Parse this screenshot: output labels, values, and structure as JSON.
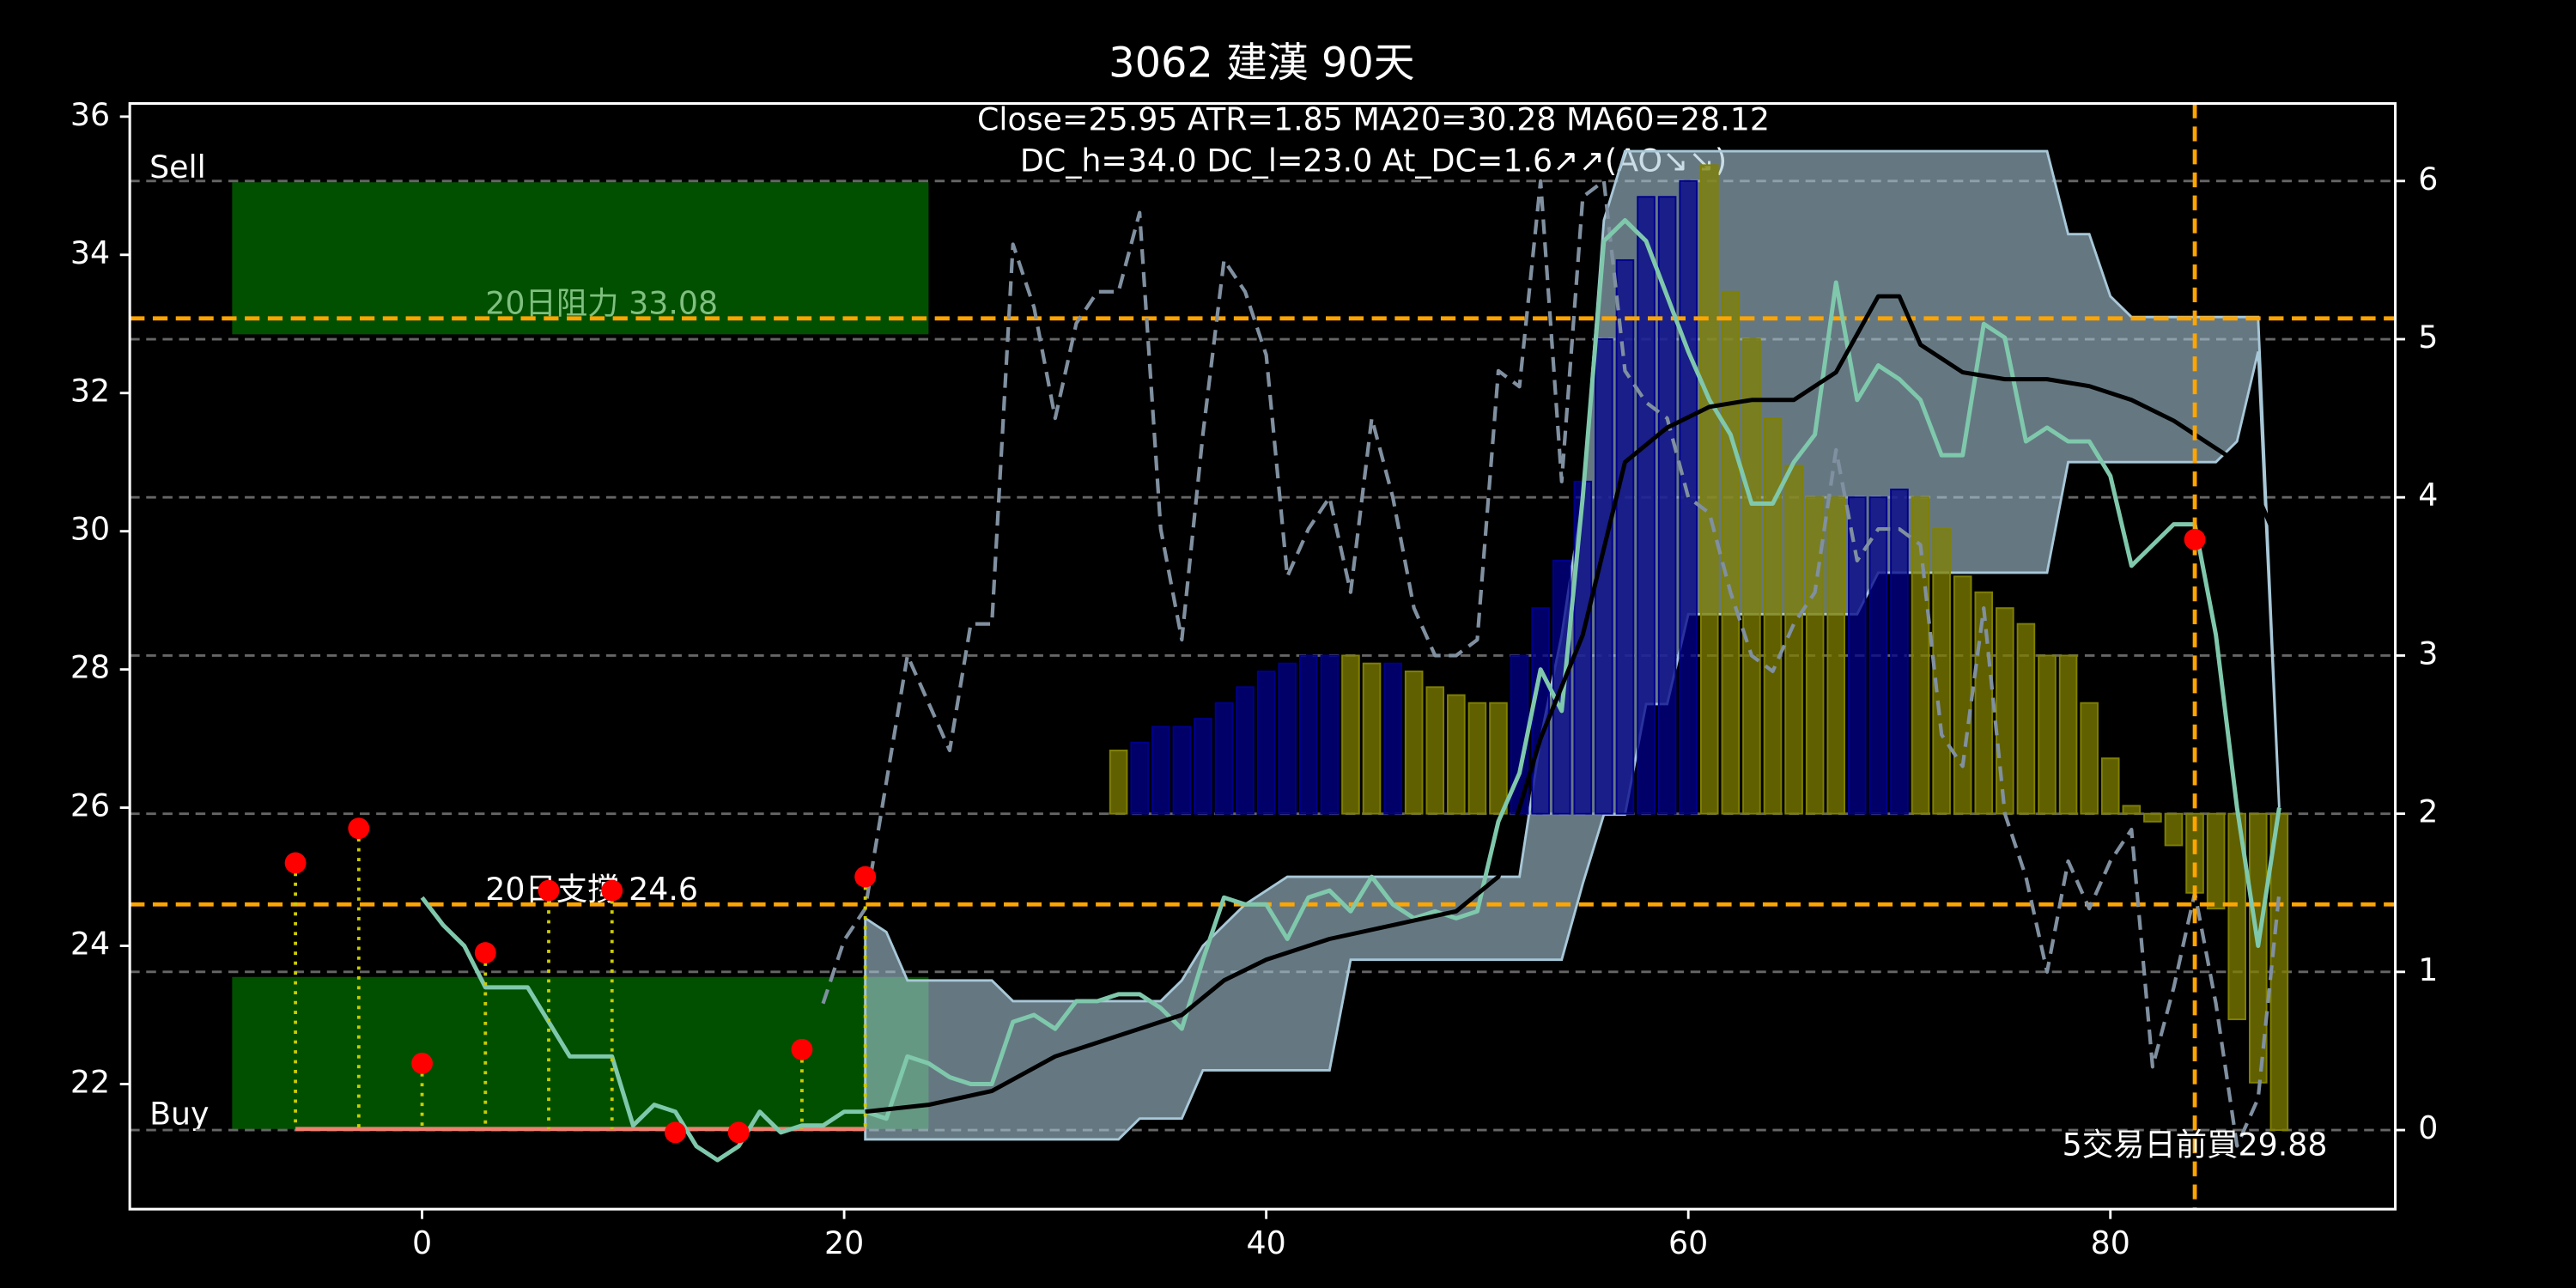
{
  "chart_data": {
    "type": "line",
    "title": "3062 建漢 90天",
    "subtitle": [
      "Close=25.95 ATR=1.85 MA20=30.28 MA60=28.12",
      "DC_h=34.0 DC_l=23.0 At_DC=1.6↗↗(AO↘↘)"
    ],
    "xlim": [
      -13.85,
      93.5
    ],
    "xticks": [
      0,
      20,
      40,
      60,
      80
    ],
    "ylim": [
      20.19,
      36.19
    ],
    "yticks": [
      22,
      24,
      26,
      28,
      30,
      32,
      34,
      36
    ],
    "y2lim": [
      -0.5,
      6.49
    ],
    "y2ticks": [
      0,
      1,
      2,
      3,
      4,
      5,
      6
    ],
    "zones": [
      {
        "name": "Sell",
        "x": [
          -9,
          24
        ],
        "y": [
          32.85,
          35.05
        ],
        "color": "#005000"
      },
      {
        "name": "Buy",
        "x": [
          -9,
          24
        ],
        "y": [
          21.35,
          23.55
        ],
        "color": "#005000"
      }
    ],
    "band": {
      "color": "#a8c8d8",
      "x": [
        21,
        22,
        23,
        24,
        25,
        26,
        27,
        28,
        29,
        30,
        31,
        32,
        33,
        34,
        35,
        36,
        37,
        38,
        39,
        40,
        41,
        42,
        43,
        44,
        45,
        46,
        47,
        48,
        49,
        50,
        51,
        52,
        53,
        54,
        55,
        56,
        57,
        58,
        59,
        60,
        61,
        62,
        63,
        64,
        65,
        66,
        67,
        68,
        69,
        70,
        71,
        72,
        73,
        74,
        75,
        76,
        77,
        78,
        79,
        80,
        81,
        82,
        83,
        84,
        85,
        86,
        87,
        88
      ],
      "upper": [
        24.4,
        24.2,
        23.5,
        23.5,
        23.5,
        23.5,
        23.5,
        23.2,
        23.2,
        23.2,
        23.2,
        23.2,
        23.2,
        23.2,
        23.2,
        23.5,
        24.0,
        24.3,
        24.6,
        24.8,
        25.0,
        25.0,
        25.0,
        25.0,
        25.0,
        25.0,
        25.0,
        25.0,
        25.0,
        25.0,
        25.0,
        25.0,
        27.0,
        28.5,
        30.5,
        34.5,
        35.5,
        35.5,
        35.5,
        35.5,
        35.5,
        35.5,
        35.5,
        35.5,
        35.5,
        35.5,
        35.5,
        35.5,
        35.5,
        35.5,
        35.5,
        35.5,
        35.5,
        35.5,
        35.5,
        35.5,
        35.5,
        34.3,
        34.3,
        33.4,
        33.1,
        33.1,
        33.1,
        33.1,
        33.1,
        33.1,
        33.1,
        26.0
      ],
      "lower": [
        21.2,
        21.2,
        21.2,
        21.2,
        21.2,
        21.2,
        21.2,
        21.2,
        21.2,
        21.2,
        21.2,
        21.2,
        21.2,
        21.5,
        21.5,
        21.5,
        22.2,
        22.2,
        22.2,
        22.2,
        22.2,
        22.2,
        22.2,
        23.8,
        23.8,
        23.8,
        23.8,
        23.8,
        23.8,
        23.8,
        23.8,
        23.8,
        23.8,
        23.8,
        24.9,
        25.9,
        25.9,
        27.5,
        27.5,
        28.8,
        28.8,
        28.8,
        28.8,
        28.8,
        28.8,
        28.8,
        28.8,
        28.8,
        29.4,
        29.4,
        29.4,
        29.4,
        29.4,
        29.4,
        29.4,
        29.4,
        29.4,
        31.0,
        31.0,
        31.0,
        31.0,
        31.0,
        31.0,
        31.0,
        31.0,
        31.3,
        32.6,
        26.0
      ]
    },
    "bars": {
      "axis": "y2",
      "base": 2,
      "x": [
        33,
        34,
        35,
        36,
        37,
        38,
        39,
        40,
        41,
        42,
        43,
        44,
        45,
        46,
        47,
        48,
        49,
        50,
        51,
        52,
        53,
        54,
        55,
        56,
        57,
        58,
        59,
        60,
        61,
        62,
        63,
        64,
        65,
        66,
        67,
        68,
        69,
        70,
        71,
        72,
        73,
        74,
        75,
        76,
        77,
        78,
        79,
        80,
        81,
        82,
        83,
        84,
        85,
        86,
        87,
        88
      ],
      "values": [
        2.4,
        2.45,
        2.55,
        2.55,
        2.6,
        2.7,
        2.8,
        2.9,
        2.95,
        3.0,
        3.0,
        3.0,
        2.95,
        2.95,
        2.9,
        2.8,
        2.75,
        2.7,
        2.7,
        3.0,
        3.3,
        3.6,
        4.1,
        5.0,
        5.5,
        5.9,
        5.9,
        6.0,
        6.1,
        5.3,
        5.0,
        4.5,
        4.2,
        4.0,
        4.0,
        4.0,
        4.0,
        4.05,
        4.0,
        3.8,
        3.5,
        3.4,
        3.3,
        3.2,
        3.0,
        3.0,
        2.7,
        2.35,
        2.05,
        1.95,
        1.8,
        1.5,
        1.4,
        0.7,
        0.3,
        0.0
      ],
      "colors": [
        "#808000",
        "#00008b",
        "#00008b",
        "#00008b",
        "#00008b",
        "#00008b",
        "#00008b",
        "#00008b",
        "#00008b",
        "#00008b",
        "#00008b",
        "#808000",
        "#808000",
        "#00008b",
        "#808000",
        "#808000",
        "#808000",
        "#808000",
        "#808000",
        "#00008b",
        "#00008b",
        "#00008b",
        "#00008b",
        "#00008b",
        "#00008b",
        "#00008b",
        "#00008b",
        "#00008b",
        "#808000",
        "#808000",
        "#808000",
        "#808000",
        "#808000",
        "#808000",
        "#808000",
        "#00008b",
        "#00008b",
        "#00008b",
        "#808000",
        "#808000",
        "#808000",
        "#808000",
        "#808000",
        "#808000",
        "#808000",
        "#808000",
        "#808000",
        "#808000",
        "#808000",
        "#808000",
        "#808000",
        "#808000",
        "#808000",
        "#808000",
        "#808000",
        "#808000"
      ]
    },
    "series": [
      {
        "color": "#8090a0",
        "dash": true,
        "axis": "y2",
        "x": [
          19,
          20,
          21,
          22,
          23,
          24,
          25,
          26,
          27,
          28,
          29,
          30,
          31,
          32,
          33,
          34,
          35,
          36,
          37,
          38,
          39,
          40,
          41,
          42,
          43,
          44,
          45,
          46,
          47,
          48,
          49,
          50,
          51,
          52,
          53,
          54,
          55,
          56,
          57,
          58,
          59,
          60,
          61,
          62,
          63,
          64,
          65,
          66,
          67,
          68,
          69,
          70,
          71,
          72,
          73,
          74,
          75,
          76,
          77,
          78,
          79,
          80,
          81,
          82,
          83,
          84,
          85,
          86,
          87,
          88
        ],
        "values": [
          0.8,
          1.2,
          1.4,
          2.2,
          3.0,
          2.7,
          2.4,
          3.2,
          3.2,
          5.6,
          5.2,
          4.5,
          5.1,
          5.3,
          5.3,
          5.8,
          3.8,
          3.1,
          4.4,
          5.5,
          5.3,
          4.9,
          3.5,
          3.8,
          4.0,
          3.4,
          4.5,
          4.0,
          3.3,
          3.0,
          3.0,
          3.1,
          4.8,
          4.7,
          6.0,
          4.1,
          5.9,
          6.0,
          4.8,
          4.6,
          4.5,
          4.0,
          3.9,
          3.4,
          3.0,
          2.9,
          3.2,
          3.4,
          4.3,
          3.6,
          3.8,
          3.8,
          3.7,
          2.5,
          2.3,
          3.3,
          2.0,
          1.6,
          1.0,
          1.7,
          1.4,
          1.7,
          1.9,
          0.4,
          0.9,
          1.5,
          0.8,
          -0.1,
          0.2,
          1.5
        ]
      },
      {
        "color": "#7fc8ac",
        "dash": false,
        "x": [
          0,
          1,
          2,
          3,
          4,
          5,
          6,
          7,
          8,
          9,
          10,
          11,
          12,
          13,
          14,
          15,
          16,
          17,
          18,
          19,
          20,
          21,
          22,
          23,
          24,
          25,
          26,
          27,
          28,
          29,
          30,
          31,
          32,
          33,
          34,
          35,
          36,
          37,
          38,
          39,
          40,
          41,
          42,
          43,
          44,
          45,
          46,
          47,
          48,
          49,
          50,
          51,
          52,
          53,
          54,
          55,
          56,
          57,
          58,
          59,
          60,
          61,
          62,
          63,
          64,
          65,
          66,
          67,
          68,
          69,
          70,
          71,
          72,
          73,
          74,
          75,
          76,
          77,
          78,
          79,
          80,
          81,
          82,
          83,
          84,
          85,
          86,
          87,
          88
        ],
        "values": [
          24.7,
          24.3,
          24.0,
          23.4,
          23.4,
          23.4,
          22.9,
          22.4,
          22.4,
          22.4,
          21.4,
          21.7,
          21.6,
          21.1,
          20.9,
          21.1,
          21.6,
          21.3,
          21.4,
          21.4,
          21.6,
          21.6,
          21.5,
          22.4,
          22.3,
          22.1,
          22.0,
          22.0,
          22.9,
          23.0,
          22.8,
          23.2,
          23.2,
          23.3,
          23.3,
          23.1,
          22.8,
          23.8,
          24.7,
          24.6,
          24.6,
          24.1,
          24.7,
          24.8,
          24.5,
          25.0,
          24.6,
          24.4,
          24.5,
          24.4,
          24.5,
          25.8,
          26.5,
          28.0,
          27.4,
          30.5,
          34.2,
          34.5,
          34.2,
          33.4,
          32.6,
          31.9,
          31.4,
          30.4,
          30.4,
          31.0,
          31.4,
          33.6,
          31.9,
          32.4,
          32.2,
          31.9,
          31.1,
          31.1,
          33.0,
          32.8,
          31.3,
          31.5,
          31.3,
          31.3,
          30.8,
          29.5,
          29.8,
          30.1,
          30.1,
          28.5,
          26.0,
          24.0,
          26.0
        ]
      },
      {
        "color": "#000000",
        "dash": false,
        "x": [
          21,
          24,
          27,
          30,
          33,
          36,
          38,
          40,
          43,
          46,
          49,
          51,
          53,
          55,
          57,
          59,
          61,
          63,
          65,
          67,
          69,
          70,
          71,
          73,
          75,
          77,
          79,
          81,
          83,
          85,
          86,
          87,
          88
        ],
        "values": [
          21.6,
          21.7,
          21.9,
          22.4,
          22.7,
          23.0,
          23.5,
          23.8,
          24.1,
          24.3,
          24.5,
          25.0,
          27.0,
          28.5,
          31.0,
          31.5,
          31.8,
          31.9,
          31.9,
          32.3,
          33.4,
          33.4,
          32.7,
          32.3,
          32.2,
          32.2,
          32.1,
          31.9,
          31.6,
          31.2,
          31.0,
          30.5,
          29.8
        ]
      }
    ],
    "levels": [
      {
        "label": "20日阻力 33.08",
        "value": 33.08,
        "color": "#ffa500",
        "label_color": "#7fbf7f"
      },
      {
        "label": "20日支撐 24.6",
        "value": 24.6,
        "color": "#ffa500",
        "label_color": "#ffffff"
      }
    ],
    "floor": {
      "value": 21.35,
      "x": [
        -6,
        21
      ],
      "color": "#f08070"
    },
    "signals": {
      "color": "#ff0000",
      "stem_color": "#cccc00",
      "x": [
        -6,
        -3,
        0,
        3,
        6,
        9,
        12,
        15,
        18,
        21
      ],
      "values": [
        25.2,
        25.7,
        22.3,
        23.9,
        24.8,
        24.8,
        21.3,
        21.3,
        22.5,
        25.0
      ]
    },
    "marker": {
      "label": "5交易日前買29.88",
      "x": 84,
      "value": 29.88,
      "color": "#ff0000",
      "line_color": "#ffa500"
    }
  }
}
